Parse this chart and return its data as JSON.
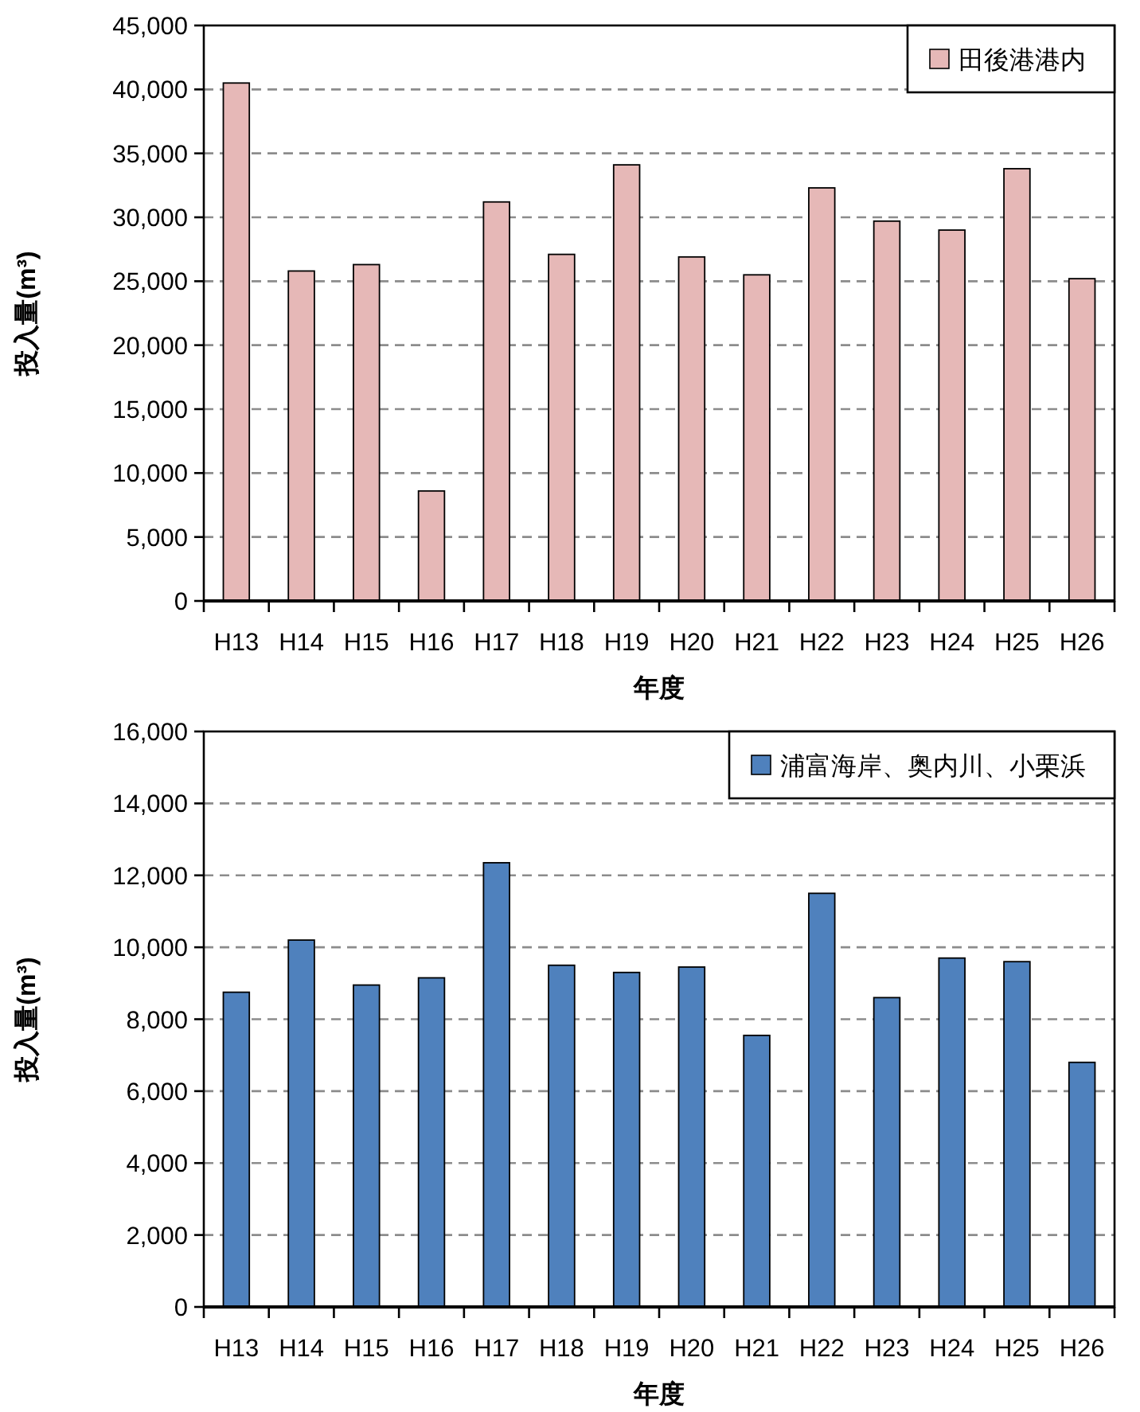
{
  "chart_data": [
    {
      "type": "bar",
      "xlabel": "年度",
      "ylabel": "投入量(m³)",
      "categories": [
        "H13",
        "H14",
        "H15",
        "H16",
        "H17",
        "H18",
        "H19",
        "H20",
        "H21",
        "H22",
        "H23",
        "H24",
        "H25",
        "H26"
      ],
      "series": [
        {
          "name": "田後港港内",
          "color": "#e6b8b7",
          "values": [
            40500,
            25800,
            26300,
            8600,
            31200,
            27100,
            34100,
            26900,
            25500,
            32300,
            29700,
            29000,
            33800,
            25200
          ]
        }
      ],
      "ylim": [
        0,
        45000
      ],
      "yticks": [
        {
          "value": 0,
          "label": "0"
        },
        {
          "value": 5000,
          "label": "5,000"
        },
        {
          "value": 10000,
          "label": "10,000"
        },
        {
          "value": 15000,
          "label": "15,000"
        },
        {
          "value": 20000,
          "label": "20,000"
        },
        {
          "value": 25000,
          "label": "25,000"
        },
        {
          "value": 30000,
          "label": "30,000"
        },
        {
          "value": 35000,
          "label": "35,000"
        },
        {
          "value": 40000,
          "label": "40,000"
        },
        {
          "value": 45000,
          "label": "45,000"
        }
      ],
      "grid": "y",
      "legend": "top right"
    },
    {
      "type": "bar",
      "xlabel": "年度",
      "ylabel": "投入量(m³)",
      "categories": [
        "H13",
        "H14",
        "H15",
        "H16",
        "H17",
        "H18",
        "H19",
        "H20",
        "H21",
        "H22",
        "H23",
        "H24",
        "H25",
        "H26"
      ],
      "series": [
        {
          "name": "浦富海岸、奥内川、小栗浜",
          "color": "#4f81bd",
          "values": [
            8750,
            10200,
            8950,
            9150,
            12350,
            9500,
            9300,
            9450,
            7550,
            11500,
            8600,
            9700,
            9600,
            6800
          ]
        }
      ],
      "ylim": [
        0,
        16000
      ],
      "yticks": [
        {
          "value": 0,
          "label": "0"
        },
        {
          "value": 2000,
          "label": "2,000"
        },
        {
          "value": 4000,
          "label": "4,000"
        },
        {
          "value": 6000,
          "label": "6,000"
        },
        {
          "value": 8000,
          "label": "8,000"
        },
        {
          "value": 10000,
          "label": "10,000"
        },
        {
          "value": 12000,
          "label": "12,000"
        },
        {
          "value": 14000,
          "label": "14,000"
        },
        {
          "value": 16000,
          "label": "16,000"
        }
      ],
      "grid": "y",
      "legend": "top right"
    }
  ]
}
